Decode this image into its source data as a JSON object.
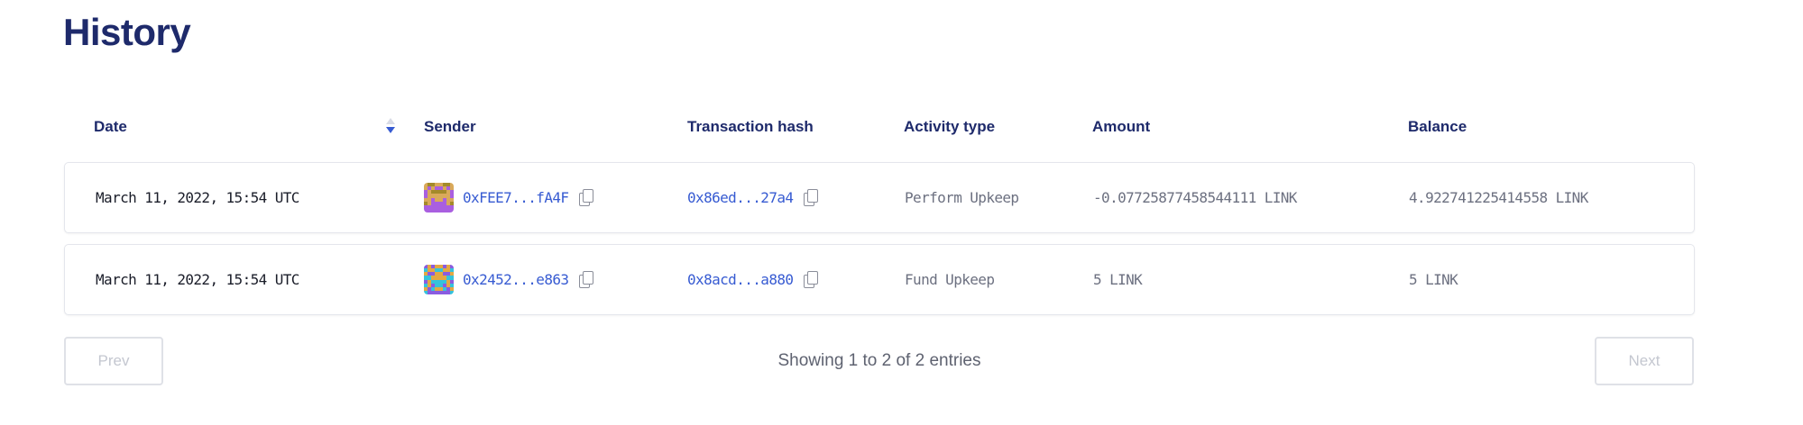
{
  "page": {
    "title": "History"
  },
  "table": {
    "columns": [
      "Date",
      "Sender",
      "Transaction hash",
      "Activity type",
      "Amount",
      "Balance"
    ],
    "sort": {
      "column": "Date",
      "direction": "descending"
    },
    "rows": [
      {
        "date": "March 11, 2022, 15:54 UTC",
        "sender": "0xFEE7...fA4F",
        "hash": "0x86ed...27a4",
        "activity": "Perform Upkeep",
        "amount": "-0.07725877458544111 LINK",
        "balance": "4.922741225414558 LINK",
        "avatar_colors": [
          "#d9a95a",
          "#a95fe0",
          "#a48a2a"
        ]
      },
      {
        "date": "March 11, 2022, 15:54 UTC",
        "sender": "0x2452...e863",
        "hash": "0x8acd...a880",
        "activity": "Fund Upkeep",
        "amount": "5 LINK",
        "balance": "5 LINK",
        "avatar_colors": [
          "#e4a843",
          "#35c3dc",
          "#8a5ce0"
        ]
      }
    ]
  },
  "pagination": {
    "prev": "Prev",
    "next": "Next",
    "info": "Showing 1 to 2 of 2 entries"
  },
  "colors": {
    "title": "#1e2a6b",
    "link": "#375bd2",
    "muted": "#6c7080"
  }
}
